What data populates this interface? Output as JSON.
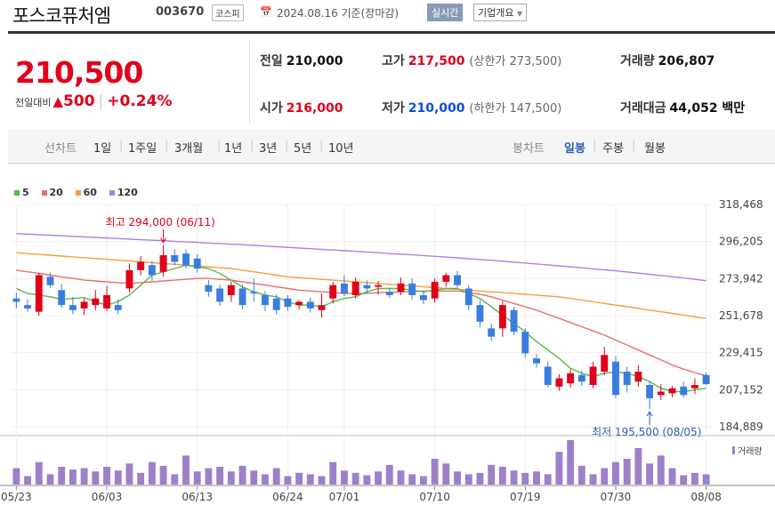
{
  "header": {
    "name": "포스코퓨처엠",
    "code": "003670",
    "market": "코스피",
    "date": "2024.08.16 기준(장마감)",
    "realtime": "실시간",
    "company": "기업개요"
  },
  "quote": {
    "price": "210,500",
    "change_label": "전일대비",
    "change": "500",
    "change_pct": "+0.24%",
    "prev_label": "전일",
    "prev": "210,000",
    "high_label": "고가",
    "high": "217,500",
    "upper_label": "(상한가 273,500)",
    "volume_label": "거래량",
    "volume": "206,807",
    "open_label": "시가",
    "open": "216,000",
    "low_label": "저가",
    "low": "210,000",
    "lower_label": "(하한가 147,500)",
    "amount_label": "거래대금",
    "amount": "44,052 백만"
  },
  "toolbar": {
    "line_label": "선차트",
    "periods": [
      "1일",
      "1주일",
      "3개월",
      "1년",
      "3년",
      "5년",
      "10년"
    ],
    "candle_label": "봉차트",
    "candles": [
      "일봉",
      "주봉",
      "월봉"
    ]
  },
  "colors": {
    "up": "#e0001b",
    "down": "#3a7de0",
    "ma5": "#5cb84a",
    "ma20": "#ef6b6b",
    "ma60": "#f3a03a",
    "ma120": "#b07fe0",
    "volume": "#9d80c9"
  },
  "chart_data": {
    "type": "candlestick",
    "title": "",
    "legend": [
      "5",
      "20",
      "60",
      "120"
    ],
    "ylim": [
      184889,
      318468
    ],
    "y_ticks": [
      318468,
      296205,
      273942,
      251678,
      229415,
      207152,
      184889
    ],
    "y_tick_labels": [
      "318,468",
      "296,205",
      "273,942",
      "251,678",
      "229,415",
      "207,152",
      "184,889"
    ],
    "x_tick_labels": [
      "05/23",
      "06/03",
      "06/13",
      "06/24",
      "07/01",
      "07/10",
      "07/19",
      "07/30",
      "08/08"
    ],
    "x_tick_index": [
      0,
      8,
      16,
      24,
      29,
      37,
      45,
      53,
      61
    ],
    "high_annotation": "최고 294,000 (06/11)",
    "high_index": 13,
    "high_value": 294000,
    "low_annotation": "최저 195,500 (08/05)",
    "low_index": 56,
    "low_value": 195500,
    "volume_label": "거래량",
    "candles": [
      {
        "o": 262000,
        "h": 265500,
        "l": 256000,
        "c": 260000
      },
      {
        "o": 258000,
        "h": 261500,
        "l": 254000,
        "c": 256000
      },
      {
        "o": 254000,
        "h": 277500,
        "l": 251500,
        "c": 276000
      },
      {
        "o": 275000,
        "h": 277500,
        "l": 268500,
        "c": 270000
      },
      {
        "o": 267000,
        "h": 270500,
        "l": 256500,
        "c": 258000
      },
      {
        "o": 258000,
        "h": 263000,
        "l": 252500,
        "c": 255000
      },
      {
        "o": 256000,
        "h": 262000,
        "l": 252000,
        "c": 260000
      },
      {
        "o": 258000,
        "h": 267000,
        "l": 255000,
        "c": 262000
      },
      {
        "o": 256000,
        "h": 269500,
        "l": 254500,
        "c": 264000
      },
      {
        "o": 258000,
        "h": 261500,
        "l": 252500,
        "c": 255000
      },
      {
        "o": 268000,
        "h": 283000,
        "l": 265500,
        "c": 279000
      },
      {
        "o": 279000,
        "h": 287500,
        "l": 276000,
        "c": 284000
      },
      {
        "o": 282000,
        "h": 284500,
        "l": 272500,
        "c": 276000
      },
      {
        "o": 278000,
        "h": 294000,
        "l": 275000,
        "c": 288000
      },
      {
        "o": 288000,
        "h": 291500,
        "l": 282000,
        "c": 284000
      },
      {
        "o": 289000,
        "h": 291500,
        "l": 280000,
        "c": 282000
      },
      {
        "o": 286000,
        "h": 288500,
        "l": 277500,
        "c": 280000
      },
      {
        "o": 270000,
        "h": 273000,
        "l": 263000,
        "c": 266000
      },
      {
        "o": 268000,
        "h": 270000,
        "l": 257500,
        "c": 260000
      },
      {
        "o": 264000,
        "h": 272000,
        "l": 260000,
        "c": 270000
      },
      {
        "o": 268000,
        "h": 270500,
        "l": 255500,
        "c": 258000
      },
      {
        "o": 266000,
        "h": 274000,
        "l": 260000,
        "c": 265000
      },
      {
        "o": 264000,
        "h": 266500,
        "l": 254500,
        "c": 258000
      },
      {
        "o": 262000,
        "h": 264500,
        "l": 252500,
        "c": 255000
      },
      {
        "o": 262000,
        "h": 264000,
        "l": 254500,
        "c": 257000
      },
      {
        "o": 258000,
        "h": 261000,
        "l": 255500,
        "c": 260000
      },
      {
        "o": 260000,
        "h": 262500,
        "l": 253500,
        "c": 256000
      },
      {
        "o": 255000,
        "h": 265000,
        "l": 250500,
        "c": 258000
      },
      {
        "o": 262000,
        "h": 272000,
        "l": 259000,
        "c": 270000
      },
      {
        "o": 271000,
        "h": 276000,
        "l": 263500,
        "c": 265000
      },
      {
        "o": 264000,
        "h": 274500,
        "l": 262000,
        "c": 272000
      },
      {
        "o": 270000,
        "h": 273000,
        "l": 265000,
        "c": 268000
      },
      {
        "o": 269000,
        "h": 272500,
        "l": 264500,
        "c": 270000
      },
      {
        "o": 266000,
        "h": 268500,
        "l": 262500,
        "c": 264000
      },
      {
        "o": 266000,
        "h": 274500,
        "l": 264000,
        "c": 271000
      },
      {
        "o": 271000,
        "h": 274000,
        "l": 261500,
        "c": 264000
      },
      {
        "o": 264000,
        "h": 266500,
        "l": 258500,
        "c": 261000
      },
      {
        "o": 262000,
        "h": 274000,
        "l": 259500,
        "c": 272000
      },
      {
        "o": 272000,
        "h": 277500,
        "l": 269000,
        "c": 276000
      },
      {
        "o": 276000,
        "h": 278500,
        "l": 268500,
        "c": 270000
      },
      {
        "o": 268000,
        "h": 270000,
        "l": 255000,
        "c": 258000
      },
      {
        "o": 258000,
        "h": 261000,
        "l": 244500,
        "c": 248000
      },
      {
        "o": 244000,
        "h": 247000,
        "l": 236500,
        "c": 239000
      },
      {
        "o": 244000,
        "h": 260500,
        "l": 239000,
        "c": 258000
      },
      {
        "o": 255000,
        "h": 257000,
        "l": 240000,
        "c": 242000
      },
      {
        "o": 242000,
        "h": 244000,
        "l": 226500,
        "c": 229000
      },
      {
        "o": 226000,
        "h": 228500,
        "l": 220500,
        "c": 223000
      },
      {
        "o": 221000,
        "h": 224000,
        "l": 208500,
        "c": 210000
      },
      {
        "o": 209000,
        "h": 216500,
        "l": 206500,
        "c": 214000
      },
      {
        "o": 211000,
        "h": 219500,
        "l": 208500,
        "c": 217000
      },
      {
        "o": 216000,
        "h": 218500,
        "l": 209500,
        "c": 212000
      },
      {
        "o": 210000,
        "h": 224000,
        "l": 208000,
        "c": 221000
      },
      {
        "o": 218000,
        "h": 233000,
        "l": 216000,
        "c": 228000
      },
      {
        "o": 224000,
        "h": 227500,
        "l": 202000,
        "c": 204000
      },
      {
        "o": 218000,
        "h": 221000,
        "l": 205500,
        "c": 210000
      },
      {
        "o": 212000,
        "h": 222000,
        "l": 209000,
        "c": 218000
      },
      {
        "o": 210000,
        "h": 212500,
        "l": 195500,
        "c": 202000
      },
      {
        "o": 204000,
        "h": 210500,
        "l": 201000,
        "c": 206000
      },
      {
        "o": 205000,
        "h": 209500,
        "l": 202500,
        "c": 208000
      },
      {
        "o": 209000,
        "h": 212000,
        "l": 202500,
        "c": 204000
      },
      {
        "o": 208000,
        "h": 214000,
        "l": 204500,
        "c": 210000
      },
      {
        "o": 216000,
        "h": 217500,
        "l": 210000,
        "c": 210500
      }
    ],
    "ma5": [
      268000,
      265000,
      264000,
      263000,
      261500,
      262000,
      262500,
      260000,
      258000,
      260000,
      264000,
      270000,
      276000,
      278000,
      280000,
      282000,
      281000,
      280000,
      277000,
      273000,
      269000,
      266000,
      264000,
      263000,
      260000,
      258000,
      258000,
      257000,
      260000,
      262000,
      263000,
      266000,
      268000,
      268000,
      268000,
      267000,
      266000,
      267000,
      268000,
      268000,
      265000,
      262000,
      257000,
      252000,
      247000,
      242000,
      236000,
      231000,
      226000,
      220000,
      217000,
      215000,
      217000,
      218000,
      217000,
      215000,
      212000,
      208000,
      206000,
      206000,
      207000,
      208000
    ],
    "ma20": [
      279000,
      278000,
      277000,
      276000,
      275000,
      274000,
      273000,
      272500,
      272000,
      271500,
      271000,
      271500,
      272000,
      272500,
      273000,
      273500,
      274000,
      274000,
      273500,
      273000,
      272000,
      271000,
      270000,
      269000,
      268000,
      267000,
      266500,
      266000,
      265500,
      265000,
      265000,
      265000,
      265500,
      265500,
      266000,
      266000,
      266500,
      266500,
      266500,
      266500,
      265500,
      264500,
      263000,
      261000,
      259000,
      257000,
      255000,
      252500,
      250000,
      247500,
      245000,
      242500,
      240000,
      237000,
      234000,
      231000,
      228000,
      225000,
      222000,
      219500,
      217500,
      215500
    ],
    "ma60": [
      289500,
      289000,
      288500,
      288000,
      287500,
      287000,
      286500,
      286000,
      285500,
      285000,
      284500,
      284000,
      283500,
      283000,
      282500,
      282000,
      281500,
      281000,
      280500,
      280000,
      279000,
      278000,
      277000,
      276000,
      275000,
      274500,
      274000,
      273500,
      273000,
      272500,
      272000,
      271500,
      271000,
      270500,
      270000,
      269500,
      269000,
      268500,
      268000,
      267500,
      267000,
      266500,
      266000,
      265500,
      265000,
      264500,
      264000,
      263500,
      263000,
      262000,
      261000,
      260000,
      259000,
      258000,
      257000,
      256000,
      255000,
      254000,
      253000,
      252000,
      251000,
      250000
    ],
    "ma120": [
      301000,
      300700,
      300300,
      300000,
      299700,
      299300,
      299000,
      298700,
      298300,
      298000,
      297700,
      297300,
      297000,
      296700,
      296300,
      296000,
      295700,
      295300,
      295000,
      294600,
      294300,
      293900,
      293500,
      293100,
      292700,
      292300,
      291900,
      291500,
      291100,
      290700,
      290300,
      289900,
      289500,
      289000,
      288600,
      288200,
      287800,
      287300,
      286900,
      286400,
      285900,
      285400,
      284900,
      284400,
      283800,
      283300,
      282700,
      282200,
      281600,
      281000,
      280400,
      279800,
      279200,
      278600,
      277900,
      277200,
      276500,
      275800,
      275100,
      274300,
      273500,
      272700
    ],
    "volume": [
      35,
      18,
      48,
      22,
      38,
      32,
      35,
      28,
      38,
      30,
      45,
      25,
      48,
      40,
      22,
      62,
      28,
      35,
      38,
      28,
      40,
      30,
      22,
      35,
      18,
      25,
      22,
      18,
      48,
      30,
      25,
      20,
      28,
      42,
      30,
      22,
      18,
      55,
      45,
      28,
      22,
      25,
      42,
      38,
      30,
      25,
      28,
      22,
      70,
      95,
      40,
      22,
      35,
      48,
      55,
      78,
      45,
      62,
      35,
      20,
      25,
      22
    ]
  }
}
